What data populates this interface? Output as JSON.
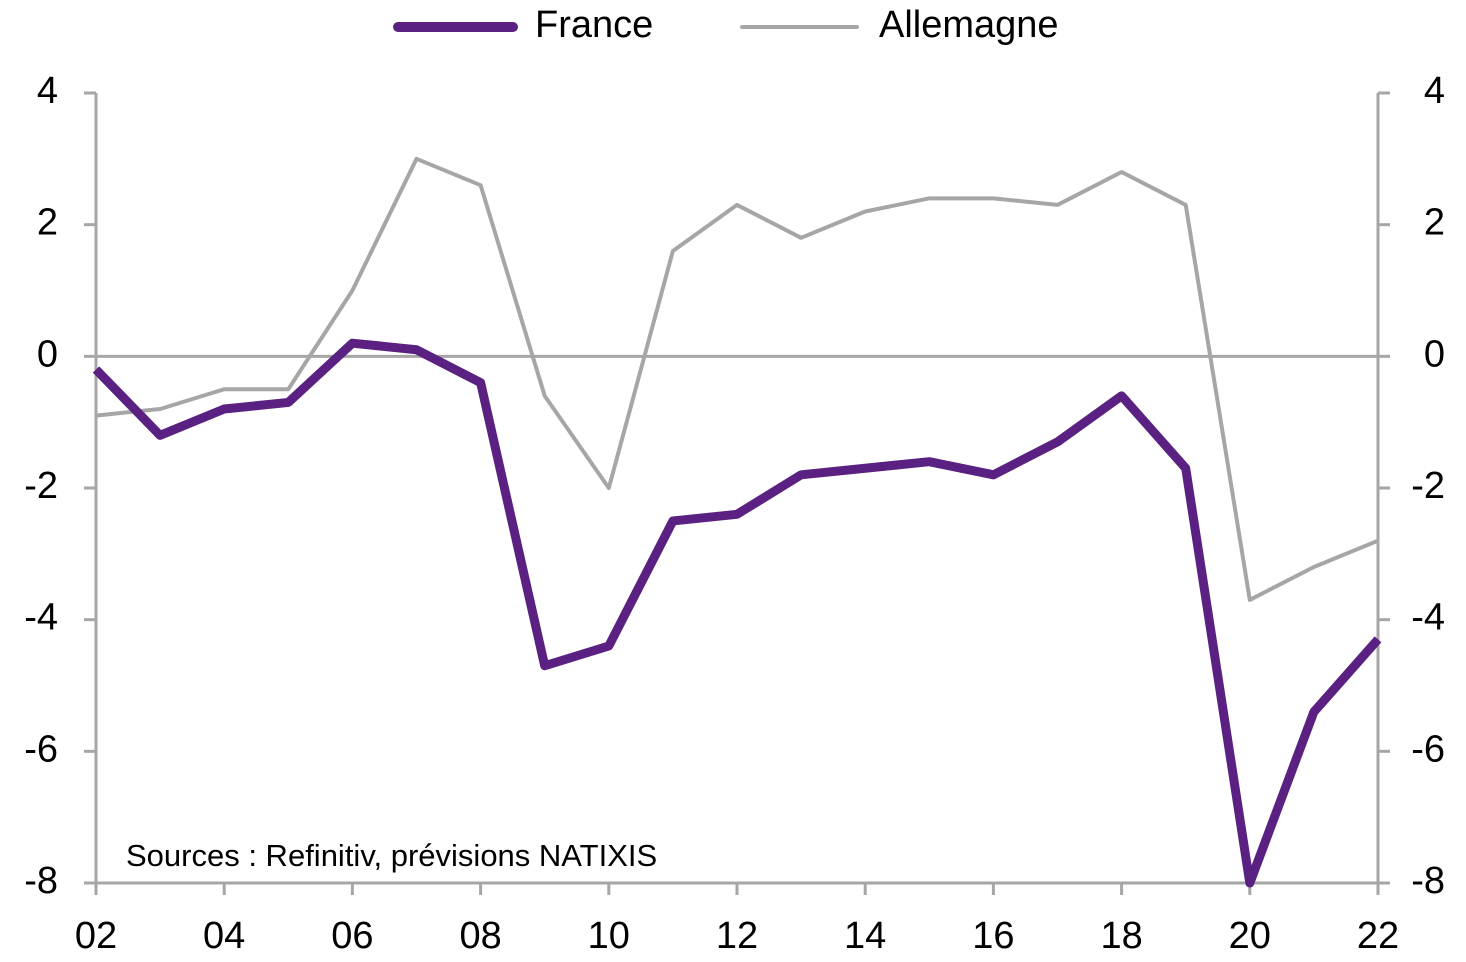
{
  "chart_data": {
    "type": "line",
    "categories": [
      "02",
      null,
      "04",
      null,
      "06",
      null,
      "08",
      null,
      "10",
      null,
      "12",
      null,
      "14",
      null,
      "16",
      null,
      "18",
      null,
      "20",
      null,
      "22"
    ],
    "series": [
      {
        "name": "France",
        "color": "#5b2182",
        "values": [
          -0.2,
          -1.2,
          -0.8,
          -0.7,
          0.2,
          0.1,
          -0.4,
          -4.7,
          -4.4,
          -2.5,
          -2.4,
          -1.8,
          -1.7,
          -1.6,
          -1.8,
          -1.3,
          -0.6,
          -1.7,
          -8.0,
          -5.4,
          -4.3
        ]
      },
      {
        "name": "Allemagne",
        "color": "#a6a6a6",
        "values": [
          -0.9,
          -0.8,
          -0.5,
          -0.5,
          1.0,
          3.0,
          2.6,
          -0.6,
          -2.0,
          1.6,
          2.3,
          1.8,
          2.2,
          2.4,
          2.4,
          2.3,
          2.8,
          2.3,
          -3.7,
          -3.2,
          -2.8
        ]
      }
    ],
    "ylim": [
      -8,
      4
    ],
    "yticks": [
      -8,
      -6,
      -4,
      -2,
      0,
      2,
      4
    ],
    "y2lim": [
      -8,
      4
    ],
    "y2ticks": [
      -8,
      -6,
      -4,
      -2,
      0,
      2,
      4
    ],
    "annotation": "Sources : Refinitiv, prévisions NATIXIS"
  }
}
